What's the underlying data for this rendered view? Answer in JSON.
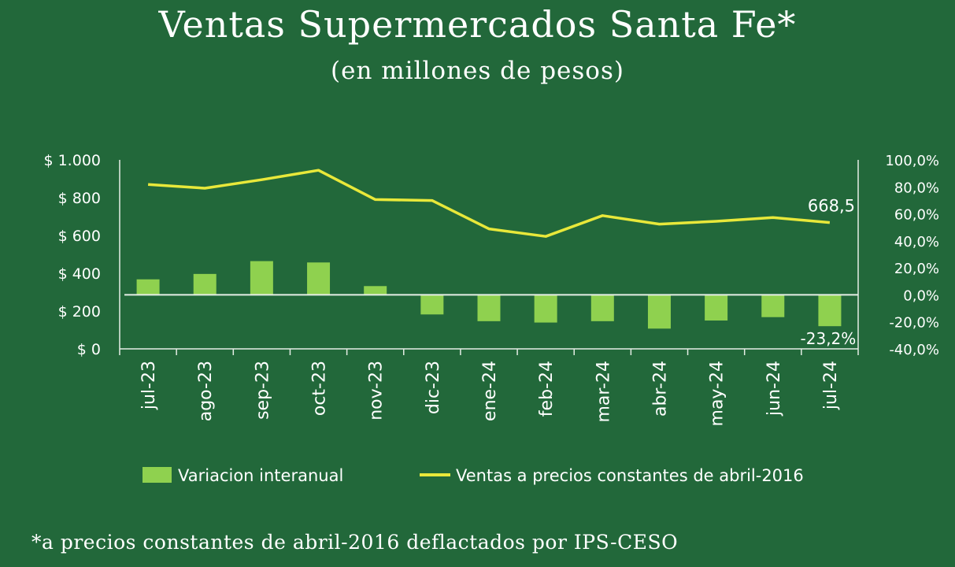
{
  "header": {
    "title": "Ventas Supermercados Santa Fe*",
    "subtitle": "(en millones de pesos)"
  },
  "footnote": "*a precios constantes de abril-2016 deflactados por IPS-CESO",
  "colors": {
    "background": "#22683a",
    "bars": "#8fd14f",
    "line": "#e8e83a",
    "axis": "#e6eee6",
    "text": "#ffffff"
  },
  "chart_data": {
    "type": "bar+line",
    "categories": [
      "jul-23",
      "ago-23",
      "sep-23",
      "oct-23",
      "nov-23",
      "dic-23",
      "ene-24",
      "feb-24",
      "mar-24",
      "abr-24",
      "may-24",
      "jun-24",
      "jul-24"
    ],
    "series": [
      {
        "name": "Variacion interanual",
        "type": "bar",
        "axis": "right",
        "values": [
          11.5,
          15.5,
          25.0,
          24.0,
          6.5,
          -14.5,
          -19.5,
          -20.5,
          -19.5,
          -25.0,
          -19.0,
          -16.5,
          -23.2
        ]
      },
      {
        "name": "Ventas a precios constantes de abril-2016",
        "type": "line",
        "axis": "left",
        "values": [
          870,
          850,
          895,
          945,
          790,
          785,
          635,
          595,
          705,
          660,
          675,
          695,
          668.5
        ]
      }
    ],
    "y_left": {
      "min": 0,
      "max": 1000,
      "ticks": [
        0,
        200,
        400,
        600,
        800,
        1000
      ],
      "tick_labels": [
        "$ 0",
        "$ 200",
        "$ 400",
        "$ 600",
        "$ 800",
        "$ 1.000"
      ]
    },
    "y_right": {
      "min": -40,
      "max": 100,
      "ticks": [
        -40,
        -20,
        0,
        20,
        40,
        60,
        80,
        100
      ],
      "tick_labels": [
        "-40,0%",
        "-20,0%",
        "0,0%",
        "20,0%",
        "40,0%",
        "60,0%",
        "80,0%",
        "100,0%"
      ]
    },
    "annotations": [
      {
        "series": "line",
        "index": 12,
        "text": "668,5"
      },
      {
        "series": "bar",
        "index": 12,
        "text": "-23,2%"
      }
    ],
    "legend": {
      "position": "bottom"
    },
    "grid": false
  }
}
